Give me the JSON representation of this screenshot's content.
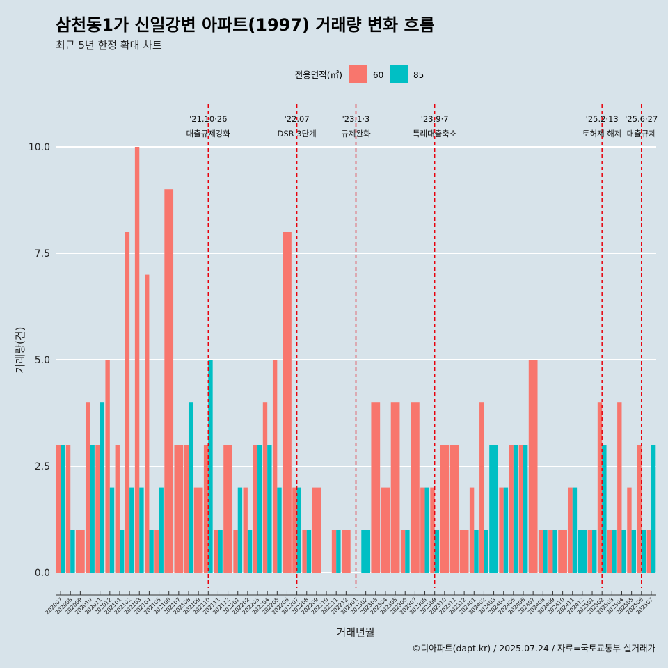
{
  "chart_data": {
    "type": "bar",
    "title": "삼천동1가 신일강변 아파트(1997) 거래량 변화 흐름",
    "subtitle": "최근 5년 한정 확대 차트",
    "xlabel": "거래년월",
    "ylabel": "거래량(건)",
    "ylim": [
      -0.5,
      10.8
    ],
    "yticks": [
      "0.0",
      "2.5",
      "5.0",
      "7.5",
      "10.0"
    ],
    "ytick_values": [
      0,
      2.5,
      5,
      7.5,
      10
    ],
    "legend": {
      "title": "전용면적(㎡)",
      "placement": "top-center"
    },
    "caption": "©디아파트(dapt.kr) / 2025.07.24 / 자료=국토교통부 실거래가",
    "colors": {
      "60": "#f8766d",
      "85": "#00bfc4",
      "event_line": "#e8000b",
      "grid": "#ffffff"
    },
    "categories": [
      "202007",
      "202008",
      "202009",
      "202010",
      "202011",
      "202012",
      "202101",
      "202102",
      "202103",
      "202104",
      "202105",
      "202106",
      "202107",
      "202108",
      "202109",
      "202110",
      "202111",
      "202112",
      "202201",
      "202202",
      "202203",
      "202204",
      "202205",
      "202206",
      "202207",
      "202208",
      "202209",
      "202210",
      "202211",
      "202212",
      "202301",
      "202302",
      "202303",
      "202304",
      "202305",
      "202306",
      "202307",
      "202308",
      "202309",
      "202310",
      "202311",
      "202312",
      "202401",
      "202402",
      "202403",
      "202404",
      "202405",
      "202406",
      "202407",
      "202408",
      "202409",
      "202410",
      "202411",
      "202412",
      "202501",
      "202502",
      "202503",
      "202504",
      "202505",
      "202506",
      "202507"
    ],
    "series": [
      {
        "name": "60",
        "values": [
          3,
          3,
          1,
          4,
          3,
          5,
          3,
          8,
          10,
          7,
          1,
          9,
          3,
          3,
          2,
          3,
          1,
          3,
          1,
          2,
          3,
          4,
          5,
          8,
          2,
          1,
          2,
          0,
          1,
          1,
          0,
          0,
          4,
          2,
          4,
          1,
          4,
          2,
          2,
          3,
          3,
          1,
          2,
          4,
          0,
          2,
          3,
          3,
          5,
          1,
          1,
          1,
          2,
          0,
          1,
          4,
          1,
          4,
          2,
          3,
          1
        ]
      },
      {
        "name": "85",
        "values": [
          3,
          1,
          0,
          3,
          4,
          2,
          1,
          2,
          2,
          1,
          2,
          0,
          0,
          4,
          0,
          5,
          1,
          0,
          2,
          1,
          3,
          3,
          2,
          0,
          2,
          1,
          0,
          0,
          1,
          0,
          0,
          1,
          0,
          0,
          0,
          1,
          0,
          2,
          1,
          0,
          0,
          0,
          1,
          1,
          3,
          2,
          3,
          3,
          0,
          1,
          1,
          0,
          2,
          1,
          1,
          3,
          1,
          1,
          1,
          1,
          3
        ]
      }
    ],
    "events": [
      {
        "at": "202110",
        "label1": "'21.10·26",
        "label2": "대출규제강화"
      },
      {
        "at": "202207",
        "label1": "'22.07",
        "label2": "DSR 3단계"
      },
      {
        "at": "202301",
        "label1": "'23.1·3",
        "label2": "규제완화"
      },
      {
        "at": "202309",
        "label1": "'23.9·7",
        "label2": "특례대출축소"
      },
      {
        "at": "202502",
        "label1": "'25.2·13",
        "label2": "토허제 해제"
      },
      {
        "at": "202506",
        "label1": "'25.6·27",
        "label2": "대출규제"
      }
    ]
  }
}
